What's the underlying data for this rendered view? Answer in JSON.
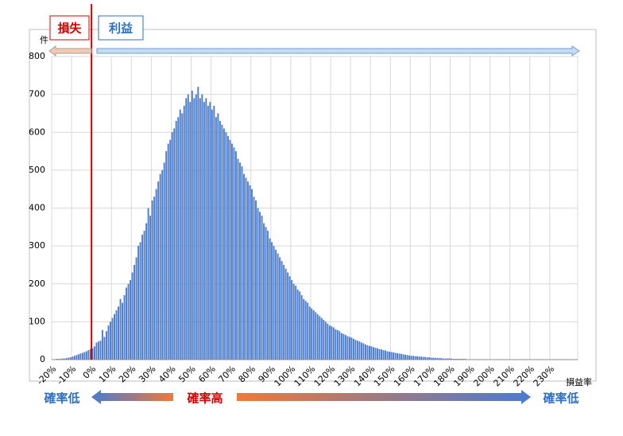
{
  "chart_data": {
    "type": "histogram",
    "y_label": "件",
    "x_label": "損益率",
    "annotations": {
      "loss": "損失",
      "profit": "利益",
      "low_left": "確率低",
      "high": "確率高",
      "low_right": "確率低"
    },
    "color": "#4a7bd0",
    "threshold_color": "#d00000",
    "grid": true,
    "xlim": [
      -20,
      244
    ],
    "ylim": [
      0,
      800
    ],
    "yticks": [
      0,
      100,
      200,
      300,
      400,
      500,
      600,
      700,
      800
    ],
    "xticks": [
      {
        "value": -20,
        "label": "-20%"
      },
      {
        "value": -10,
        "label": "-10%"
      },
      {
        "value": 0,
        "label": "0%"
      },
      {
        "value": 10,
        "label": "10%"
      },
      {
        "value": 20,
        "label": "20%"
      },
      {
        "value": 30,
        "label": "30%"
      },
      {
        "value": 40,
        "label": "40%"
      },
      {
        "value": 50,
        "label": "50%"
      },
      {
        "value": 60,
        "label": "60%"
      },
      {
        "value": 70,
        "label": "70%"
      },
      {
        "value": 80,
        "label": "80%"
      },
      {
        "value": 90,
        "label": "90%"
      },
      {
        "value": 100,
        "label": "100%"
      },
      {
        "value": 110,
        "label": "110%"
      },
      {
        "value": 120,
        "label": "120%"
      },
      {
        "value": 130,
        "label": "130%"
      },
      {
        "value": 140,
        "label": "140%"
      },
      {
        "value": 150,
        "label": "150%"
      },
      {
        "value": 160,
        "label": "160%"
      },
      {
        "value": 170,
        "label": "170%"
      },
      {
        "value": 180,
        "label": "180%"
      },
      {
        "value": 190,
        "label": "190%"
      },
      {
        "value": 200,
        "label": "200%"
      },
      {
        "value": 210,
        "label": "210%"
      },
      {
        "value": 220,
        "label": "220%"
      },
      {
        "value": 230,
        "label": "230%"
      }
    ],
    "bins": [
      -20,
      -19,
      -18,
      -17,
      -16,
      -15,
      -14,
      -13,
      -12,
      -11,
      -10,
      -9,
      -8,
      -7,
      -6,
      -5,
      -4,
      -3,
      -2,
      -1,
      0,
      1,
      2,
      3,
      4,
      5,
      6,
      7,
      8,
      9,
      10,
      11,
      12,
      13,
      14,
      15,
      16,
      17,
      18,
      19,
      20,
      21,
      22,
      23,
      24,
      25,
      26,
      27,
      28,
      29,
      30,
      31,
      32,
      33,
      34,
      35,
      36,
      37,
      38,
      39,
      40,
      41,
      42,
      43,
      44,
      45,
      46,
      47,
      48,
      49,
      50,
      51,
      52,
      53,
      54,
      55,
      56,
      57,
      58,
      59,
      60,
      61,
      62,
      63,
      64,
      65,
      66,
      67,
      68,
      69,
      70,
      71,
      72,
      73,
      74,
      75,
      76,
      77,
      78,
      79,
      80,
      81,
      82,
      83,
      84,
      85,
      86,
      87,
      88,
      89,
      90,
      91,
      92,
      93,
      94,
      95,
      96,
      97,
      98,
      99,
      100,
      101,
      102,
      103,
      104,
      105,
      106,
      107,
      108,
      109,
      110,
      111,
      112,
      113,
      114,
      115,
      116,
      117,
      118,
      119,
      120,
      121,
      122,
      123,
      124,
      125,
      126,
      127,
      128,
      129,
      130,
      131,
      132,
      133,
      134,
      135,
      136,
      137,
      138,
      139,
      140,
      141,
      142,
      143,
      144,
      145,
      146,
      147,
      148,
      149,
      150,
      151,
      152,
      153,
      154,
      155,
      156,
      157,
      158,
      159,
      160,
      161,
      162,
      163,
      164,
      165,
      166,
      167,
      168,
      169,
      170,
      171,
      172,
      173,
      174,
      175,
      176,
      177,
      178,
      179,
      180,
      181,
      182,
      183,
      184,
      185,
      186,
      187,
      188,
      189,
      190,
      191,
      192,
      193,
      194,
      195,
      196,
      197,
      198,
      199,
      200,
      201,
      202,
      203,
      204,
      205,
      206,
      207,
      208,
      209,
      210,
      211,
      212,
      213,
      214,
      215,
      216,
      217,
      218,
      219,
      220,
      221,
      222,
      223,
      224,
      225,
      226,
      227,
      228,
      229,
      230,
      231,
      232,
      233,
      234,
      235,
      236,
      237,
      238,
      239,
      240
    ],
    "values": [
      1,
      1,
      2,
      2,
      2,
      3,
      3,
      4,
      5,
      6,
      8,
      10,
      12,
      14,
      16,
      18,
      20,
      22,
      25,
      28,
      30,
      35,
      45,
      48,
      50,
      78,
      60,
      75,
      90,
      100,
      110,
      120,
      130,
      140,
      160,
      150,
      170,
      190,
      200,
      210,
      230,
      250,
      270,
      300,
      310,
      330,
      340,
      360,
      400,
      380,
      420,
      430,
      450,
      470,
      490,
      500,
      520,
      550,
      570,
      580,
      600,
      610,
      630,
      640,
      660,
      650,
      670,
      690,
      700,
      680,
      710,
      690,
      700,
      720,
      690,
      700,
      680,
      690,
      670,
      680,
      660,
      670,
      640,
      650,
      630,
      620,
      610,
      600,
      590,
      580,
      570,
      560,
      550,
      530,
      520,
      510,
      490,
      480,
      470,
      460,
      450,
      430,
      420,
      400,
      390,
      380,
      360,
      350,
      340,
      320,
      310,
      300,
      290,
      280,
      270,
      260,
      250,
      240,
      230,
      220,
      210,
      200,
      195,
      185,
      180,
      170,
      160,
      155,
      150,
      140,
      135,
      130,
      125,
      120,
      115,
      110,
      105,
      100,
      95,
      90,
      88,
      85,
      80,
      78,
      75,
      70,
      68,
      65,
      62,
      60,
      58,
      55,
      52,
      50,
      48,
      45,
      43,
      40,
      38,
      36,
      35,
      33,
      31,
      30,
      28,
      27,
      25,
      24,
      22,
      21,
      20,
      19,
      18,
      17,
      16,
      15,
      14,
      13,
      12,
      11,
      10,
      10,
      9,
      9,
      8,
      8,
      7,
      7,
      6,
      6,
      5,
      5,
      5,
      4,
      4,
      4,
      3,
      3,
      3,
      3,
      3,
      2,
      2,
      2,
      2,
      2,
      2,
      2,
      1,
      1,
      1,
      1,
      1,
      1,
      1,
      1,
      1,
      1,
      1,
      1,
      1,
      1,
      0,
      1,
      0,
      1,
      0,
      1,
      0,
      1,
      0,
      1,
      0,
      0,
      1,
      0,
      0,
      0,
      1,
      0,
      0,
      0,
      1,
      0,
      0,
      0,
      0,
      0,
      0,
      0,
      0,
      0,
      0,
      0,
      0,
      0,
      0,
      0,
      0,
      0
    ]
  }
}
